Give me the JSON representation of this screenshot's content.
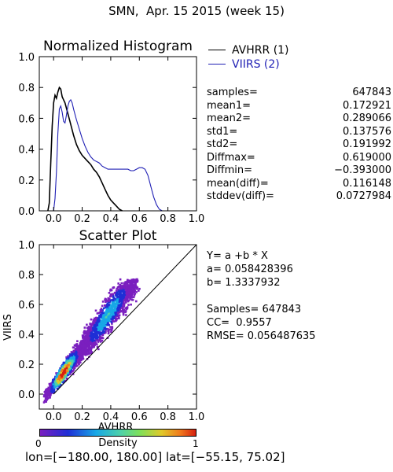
{
  "header": {
    "title": "SMN,  Apr. 15 2015 (week 15)"
  },
  "histogram": {
    "chart_data": {
      "type": "line",
      "title": "Normalized Histogram",
      "xlim": [
        -0.1,
        1.0
      ],
      "ylim": [
        0.0,
        1.0
      ],
      "xticks": [
        "0.0",
        "0.2",
        "0.4",
        "0.6",
        "0.8",
        "1.0"
      ],
      "yticks": [
        "0.0",
        "0.2",
        "0.4",
        "0.6",
        "0.8",
        "1.0"
      ],
      "series": [
        {
          "name": "AVHRR (1)",
          "color": "#000000",
          "points": [
            [
              -0.04,
              0.0
            ],
            [
              -0.03,
              0.05
            ],
            [
              -0.02,
              0.3
            ],
            [
              -0.01,
              0.55
            ],
            [
              0.0,
              0.7
            ],
            [
              0.01,
              0.75
            ],
            [
              0.02,
              0.73
            ],
            [
              0.03,
              0.77
            ],
            [
              0.04,
              0.8
            ],
            [
              0.05,
              0.79
            ],
            [
              0.06,
              0.74
            ],
            [
              0.07,
              0.72
            ],
            [
              0.08,
              0.7
            ],
            [
              0.1,
              0.63
            ],
            [
              0.12,
              0.56
            ],
            [
              0.14,
              0.49
            ],
            [
              0.16,
              0.43
            ],
            [
              0.18,
              0.39
            ],
            [
              0.2,
              0.36
            ],
            [
              0.22,
              0.34
            ],
            [
              0.24,
              0.32
            ],
            [
              0.26,
              0.3
            ],
            [
              0.28,
              0.27
            ],
            [
              0.3,
              0.25
            ],
            [
              0.32,
              0.22
            ],
            [
              0.34,
              0.18
            ],
            [
              0.36,
              0.14
            ],
            [
              0.38,
              0.1
            ],
            [
              0.4,
              0.07
            ],
            [
              0.42,
              0.05
            ],
            [
              0.44,
              0.03
            ],
            [
              0.46,
              0.01
            ],
            [
              0.48,
              0.0
            ]
          ]
        },
        {
          "name": "VIIRS (2)",
          "color": "#1f1fb4",
          "points": [
            [
              0.0,
              0.0
            ],
            [
              0.01,
              0.08
            ],
            [
              0.02,
              0.25
            ],
            [
              0.03,
              0.5
            ],
            [
              0.04,
              0.66
            ],
            [
              0.05,
              0.68
            ],
            [
              0.06,
              0.64
            ],
            [
              0.07,
              0.58
            ],
            [
              0.08,
              0.57
            ],
            [
              0.09,
              0.62
            ],
            [
              0.1,
              0.68
            ],
            [
              0.11,
              0.71
            ],
            [
              0.12,
              0.72
            ],
            [
              0.13,
              0.7
            ],
            [
              0.14,
              0.66
            ],
            [
              0.16,
              0.59
            ],
            [
              0.18,
              0.53
            ],
            [
              0.2,
              0.47
            ],
            [
              0.22,
              0.42
            ],
            [
              0.24,
              0.38
            ],
            [
              0.26,
              0.35
            ],
            [
              0.28,
              0.33
            ],
            [
              0.3,
              0.32
            ],
            [
              0.32,
              0.31
            ],
            [
              0.34,
              0.29
            ],
            [
              0.36,
              0.28
            ],
            [
              0.38,
              0.27
            ],
            [
              0.4,
              0.27
            ],
            [
              0.42,
              0.27
            ],
            [
              0.44,
              0.27
            ],
            [
              0.46,
              0.27
            ],
            [
              0.48,
              0.27
            ],
            [
              0.5,
              0.27
            ],
            [
              0.52,
              0.27
            ],
            [
              0.54,
              0.26
            ],
            [
              0.56,
              0.26
            ],
            [
              0.58,
              0.27
            ],
            [
              0.6,
              0.28
            ],
            [
              0.62,
              0.28
            ],
            [
              0.64,
              0.27
            ],
            [
              0.66,
              0.23
            ],
            [
              0.68,
              0.16
            ],
            [
              0.7,
              0.09
            ],
            [
              0.72,
              0.04
            ],
            [
              0.74,
              0.01
            ],
            [
              0.76,
              0.0
            ]
          ]
        }
      ]
    }
  },
  "stats": [
    {
      "label": "samples=",
      "value": "647843"
    },
    {
      "label": "mean1=",
      "value": "0.172921"
    },
    {
      "label": "mean2=",
      "value": "0.289066"
    },
    {
      "label": "std1=",
      "value": "0.137576"
    },
    {
      "label": "std2=",
      "value": "0.191992"
    },
    {
      "label": "Diffmax=",
      "value": "0.619000"
    },
    {
      "label": "Diffmin=",
      "value": "−0.393000"
    },
    {
      "label": "mean(diff)=",
      "value": "0.116148"
    },
    {
      "label": "stddev(diff)=",
      "value": "0.0727984"
    }
  ],
  "scatter": {
    "chart_data": {
      "type": "heatmap",
      "title": "Scatter Plot",
      "xlabel": "AVHRR",
      "ylabel": "VIIRS",
      "xlim": [
        -0.1,
        1.0
      ],
      "ylim": [
        -0.1,
        1.0
      ],
      "xticks": [
        "0.0",
        "0.2",
        "0.4",
        "0.6",
        "0.8",
        "1.0"
      ],
      "yticks": [
        "0.0",
        "0.2",
        "0.4",
        "0.6",
        "0.8",
        "1.0"
      ],
      "fit": {
        "a": 0.058428396,
        "b": 1.3337932
      },
      "density_colors": [
        "#7a1fbf",
        "#1f2fd6",
        "#18a8e6",
        "#4fd2a8",
        "#e0c92a",
        "#f07a1c",
        "#d62010"
      ]
    }
  },
  "fit": {
    "equation": "Y= a +b * X",
    "a_line": "a= 0.058428396",
    "b_line": "b= 1.3337932"
  },
  "fitstats": {
    "samples_line": "Samples= 647843",
    "cc_line": "CC=  0.9557",
    "rmse_line": "RMSE= 0.056487635"
  },
  "colorbar": {
    "label": "Density",
    "min_label": "0",
    "max_label": "1"
  },
  "footer": {
    "extent": "lon=[−180.00, 180.00] lat=[−55.15, 75.02]"
  }
}
